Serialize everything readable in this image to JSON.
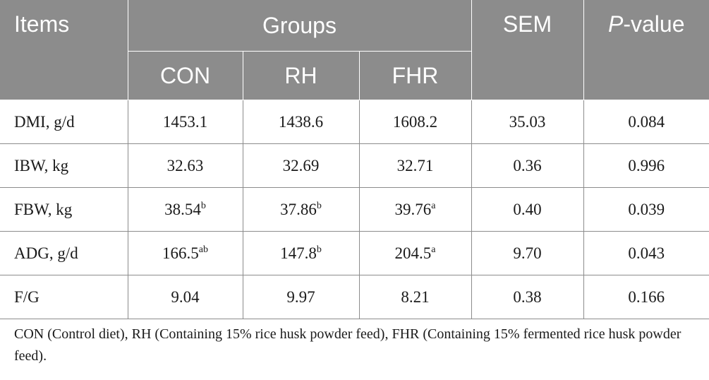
{
  "header": {
    "items": "Items",
    "groups": "Groups",
    "sem": "SEM",
    "pvalue_italic": "P",
    "pvalue_rest": "-value",
    "subgroups": [
      "CON",
      "RH",
      "FHR"
    ]
  },
  "rows": [
    {
      "label": "DMI, g/d",
      "con": {
        "v": "1453.1",
        "s": ""
      },
      "rh": {
        "v": "1438.6",
        "s": ""
      },
      "fhr": {
        "v": "1608.2",
        "s": ""
      },
      "sem": "35.03",
      "p": "0.084"
    },
    {
      "label": "IBW, kg",
      "con": {
        "v": "32.63",
        "s": ""
      },
      "rh": {
        "v": "32.69",
        "s": ""
      },
      "fhr": {
        "v": "32.71",
        "s": ""
      },
      "sem": "0.36",
      "p": "0.996"
    },
    {
      "label": "FBW, kg",
      "con": {
        "v": "38.54",
        "s": "b"
      },
      "rh": {
        "v": "37.86",
        "s": "b"
      },
      "fhr": {
        "v": "39.76",
        "s": "a"
      },
      "sem": "0.40",
      "p": "0.039"
    },
    {
      "label": "ADG, g/d",
      "con": {
        "v": "166.5",
        "s": "ab"
      },
      "rh": {
        "v": "147.8",
        "s": "b"
      },
      "fhr": {
        "v": "204.5",
        "s": "a"
      },
      "sem": "9.70",
      "p": "0.043"
    },
    {
      "label": "F/G",
      "con": {
        "v": "9.04",
        "s": ""
      },
      "rh": {
        "v": "9.97",
        "s": ""
      },
      "fhr": {
        "v": "8.21",
        "s": ""
      },
      "sem": "0.38",
      "p": "0.166"
    }
  ],
  "footnote": "CON (Control diet), RH (Containing 15% rice husk powder feed), FHR (Containing 15% fermented rice husk powder feed).",
  "colors": {
    "header_bg": "#8c8c8c",
    "header_text": "#ffffff",
    "grid": "#8c8c8c",
    "body_text": "#1a1a1a"
  }
}
